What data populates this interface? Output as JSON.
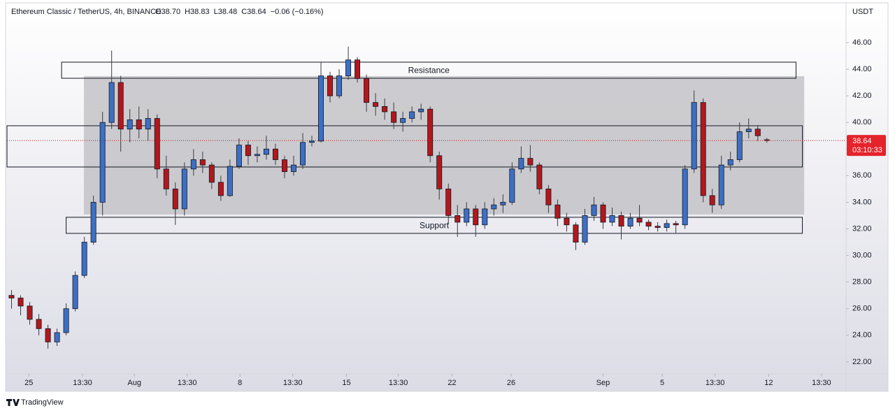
{
  "chart_data": {
    "type": "candlestick",
    "title": "Ethereum Classic / TetherUS, 4h, BINANCE",
    "ohlc_header": [
      "O38.70",
      "H38.83",
      "L38.48",
      "C38.64",
      "−0.06 (−0.16%)"
    ],
    "y_axis_label": "USDT",
    "last_price": 38.64,
    "countdown": "03:10:33",
    "brand": "TradingView",
    "up_color": "#3d6fc4",
    "down_color": "#b3171c",
    "open": [
      27.0,
      26.8,
      26.2,
      25.2,
      24.5,
      23.5,
      24.2,
      26.0,
      28.5,
      31.0,
      34.0,
      40.0,
      43.0,
      39.5,
      40.2,
      39.5,
      40.3,
      36.5,
      35.0,
      33.5,
      36.5,
      37.2,
      36.8,
      35.5,
      34.5,
      36.7,
      38.3,
      37.5,
      37.6,
      38.0,
      37.2,
      36.3,
      36.8,
      38.5,
      38.6,
      43.5,
      42.0,
      43.5,
      44.7,
      43.3,
      41.5,
      41.2,
      40.8,
      40.0,
      40.3,
      40.8,
      41.0,
      37.5,
      35.0,
      33.0,
      32.5,
      33.5,
      32.3,
      33.5,
      33.8,
      34.0,
      36.5,
      37.3,
      36.8,
      35.0,
      33.8,
      32.8,
      32.3,
      31.0,
      33.0,
      33.8,
      32.5,
      33.0,
      32.2,
      32.8,
      32.5,
      32.2,
      32.1,
      32.4,
      32.3,
      36.5,
      41.5,
      34.5,
      33.8,
      36.8,
      37.2,
      39.3,
      39.5,
      38.7
    ],
    "high": [
      27.4,
      27.0,
      26.5,
      25.6,
      24.8,
      24.5,
      26.4,
      28.8,
      31.4,
      34.5,
      40.8,
      45.4,
      43.5,
      41.0,
      41.2,
      41.0,
      40.6,
      37.5,
      35.5,
      37.0,
      38.0,
      37.8,
      37.0,
      36.0,
      37.2,
      38.8,
      38.6,
      38.2,
      39.0,
      38.4,
      37.5,
      37.5,
      39.2,
      39.0,
      44.5,
      43.8,
      44.0,
      45.7,
      44.9,
      43.6,
      42.2,
      41.8,
      41.5,
      40.8,
      41.2,
      41.4,
      41.2,
      37.8,
      35.4,
      33.8,
      34.0,
      33.8,
      34.0,
      34.3,
      34.6,
      37.0,
      38.2,
      38.3,
      37.0,
      35.3,
      34.2,
      33.2,
      32.5,
      33.5,
      34.4,
      34.0,
      33.6,
      33.3,
      33.2,
      33.8,
      32.7,
      32.5,
      32.7,
      32.6,
      36.8,
      42.4,
      41.8,
      35.0,
      37.5,
      37.8,
      40.0,
      40.3,
      39.8,
      38.83
    ],
    "low": [
      26.0,
      25.5,
      24.8,
      24.0,
      23.0,
      23.2,
      24.0,
      25.8,
      28.3,
      30.8,
      33.0,
      39.5,
      37.8,
      38.5,
      38.8,
      38.6,
      35.8,
      34.5,
      32.3,
      33.0,
      36.0,
      36.2,
      35.0,
      34.1,
      34.4,
      36.5,
      36.8,
      37.0,
      37.2,
      36.8,
      35.8,
      36.0,
      36.5,
      38.2,
      38.5,
      41.5,
      41.8,
      43.2,
      43.0,
      40.8,
      40.5,
      40.2,
      39.5,
      39.3,
      40.0,
      40.2,
      37.0,
      34.2,
      32.4,
      31.4,
      32.2,
      31.4,
      32.0,
      33.0,
      33.2,
      33.8,
      36.2,
      36.3,
      34.6,
      33.2,
      32.2,
      31.8,
      30.4,
      30.8,
      32.6,
      32.0,
      32.2,
      31.2,
      32.0,
      32.2,
      31.9,
      31.8,
      31.8,
      31.7,
      32.0,
      36.2,
      34.0,
      33.2,
      33.5,
      36.4,
      37.0,
      38.8,
      38.6,
      38.48
    ],
    "close": [
      26.8,
      26.2,
      25.2,
      24.5,
      23.5,
      24.2,
      26.0,
      28.5,
      31.0,
      34.0,
      40.0,
      43.0,
      39.5,
      40.2,
      39.5,
      40.3,
      36.5,
      35.0,
      33.5,
      36.5,
      37.2,
      36.8,
      35.5,
      34.5,
      36.7,
      38.3,
      37.5,
      37.6,
      38.0,
      37.2,
      36.3,
      36.8,
      38.5,
      38.6,
      43.5,
      42.0,
      43.5,
      44.7,
      43.3,
      41.5,
      41.2,
      40.8,
      40.0,
      40.3,
      40.8,
      41.0,
      37.5,
      35.0,
      33.0,
      32.5,
      33.5,
      32.3,
      33.5,
      33.8,
      34.0,
      36.5,
      37.3,
      36.8,
      35.0,
      33.8,
      32.8,
      32.3,
      31.0,
      33.0,
      33.8,
      32.5,
      33.0,
      32.2,
      32.8,
      32.5,
      32.2,
      32.1,
      32.4,
      32.3,
      36.5,
      41.5,
      34.5,
      33.8,
      36.8,
      37.2,
      39.3,
      39.5,
      39.0,
      38.64
    ],
    "xlim": [
      -0.5,
      91.7
    ],
    "ylim": [
      21.1,
      48.94
    ],
    "yticks": [
      {
        "value": 22,
        "label": "22.00"
      },
      {
        "value": 24,
        "label": "24.00"
      },
      {
        "value": 26,
        "label": "26.00"
      },
      {
        "value": 28,
        "label": "28.00"
      },
      {
        "value": 30,
        "label": "30.00"
      },
      {
        "value": 32,
        "label": "32.00"
      },
      {
        "value": 34,
        "label": "34.00"
      },
      {
        "value": 36,
        "label": "36.00"
      },
      {
        "value": 38,
        "label": "38.00"
      },
      {
        "value": 40,
        "label": "40.00"
      },
      {
        "value": 42,
        "label": "42.00"
      },
      {
        "value": 44,
        "label": "44.00"
      },
      {
        "value": 46,
        "label": "46.00"
      }
    ],
    "xticks": [
      {
        "value": 1.9,
        "label": "25"
      },
      {
        "value": 7.8,
        "label": "13:30"
      },
      {
        "value": 13.5,
        "label": "Aug"
      },
      {
        "value": 19.3,
        "label": "13:30"
      },
      {
        "value": 25.1,
        "label": "8"
      },
      {
        "value": 30.9,
        "label": "13:30"
      },
      {
        "value": 36.8,
        "label": "15"
      },
      {
        "value": 42.5,
        "label": "13:30"
      },
      {
        "value": 48.4,
        "label": "22"
      },
      {
        "value": 54.9,
        "label": "26"
      },
      {
        "value": 65.0,
        "label": "Sep"
      },
      {
        "value": 71.5,
        "label": "5"
      },
      {
        "value": 77.3,
        "label": "13:30"
      },
      {
        "value": 83.2,
        "label": "12"
      },
      {
        "value": 89.0,
        "label": "13:30"
      }
    ],
    "zones": [
      {
        "x": [
          7.95,
          87.1
        ],
        "y": [
          33.08,
          43.48
        ],
        "color": "#bdbdc2"
      },
      {
        "x": [
          -0.5,
          86.9
        ],
        "y": [
          36.65,
          39.75
        ]
      },
      {
        "label": "Resistance",
        "x": [
          5.5,
          86.2
        ],
        "y": [
          43.32,
          44.53
        ]
      },
      {
        "label": "Support",
        "x": [
          6.0,
          86.9
        ],
        "y": [
          31.66,
          32.87
        ]
      }
    ]
  }
}
